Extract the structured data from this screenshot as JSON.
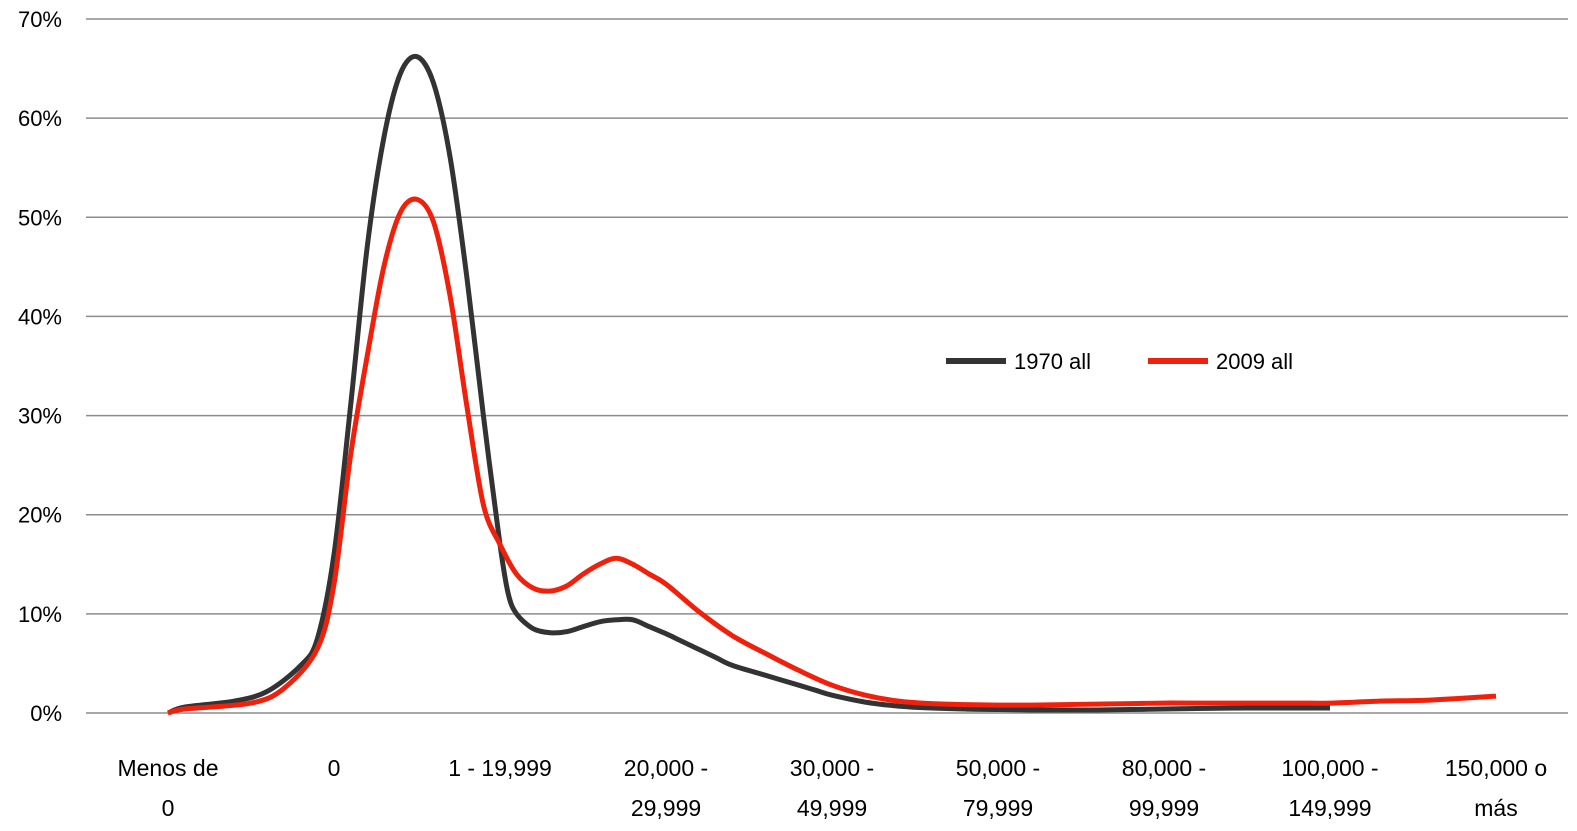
{
  "chart_data": {
    "type": "line",
    "title": "",
    "xlabel": "",
    "ylabel": "",
    "categories": [
      [
        "Menos de",
        "0"
      ],
      [
        "0"
      ],
      [
        "1 - 19,999"
      ],
      [
        "20,000 -",
        "29,999"
      ],
      [
        "30,000 -",
        "49,999"
      ],
      [
        "50,000 -",
        "79,999"
      ],
      [
        "80,000 -",
        "99,999"
      ],
      [
        "100,000 -",
        "149,999"
      ],
      [
        "150,000 o",
        "más"
      ]
    ],
    "x_range": [
      0,
      8
    ],
    "ylim": [
      0,
      70
    ],
    "y_ticks": [
      0,
      10,
      20,
      30,
      40,
      50,
      60,
      70
    ],
    "y_tick_labels": [
      "0%",
      "10%",
      "20%",
      "30%",
      "40%",
      "50%",
      "60%",
      "70%"
    ],
    "grid": true,
    "legend_position": "center-right",
    "series": [
      {
        "name": "1970 all",
        "color": "#333333",
        "x": [
          0,
          0.1,
          0.4,
          0.6,
          0.8,
          0.9,
          1.0,
          1.1,
          1.2,
          1.3,
          1.4,
          1.5,
          1.6,
          1.7,
          1.8,
          1.9,
          2.0,
          2.05,
          2.1,
          2.2,
          2.3,
          2.4,
          2.5,
          2.6,
          2.7,
          2.8,
          2.9,
          3.0,
          3.1,
          3.2,
          3.3,
          3.4,
          3.6,
          3.8,
          3.9,
          4.0,
          4.2,
          4.4,
          4.6,
          4.8,
          5.0,
          5.2,
          5.4,
          5.6,
          5.8,
          6.0,
          6.2,
          6.5,
          6.8,
          7.0
        ],
        "values": [
          0.0,
          0.6,
          1.2,
          2.2,
          4.8,
          7.5,
          16,
          31,
          47,
          58,
          64.5,
          66.2,
          63.5,
          56,
          44,
          30,
          17,
          12,
          10,
          8.5,
          8.1,
          8.2,
          8.7,
          9.2,
          9.4,
          9.4,
          8.7,
          8.0,
          7.2,
          6.4,
          5.6,
          4.8,
          3.8,
          2.8,
          2.3,
          1.8,
          1.1,
          0.7,
          0.5,
          0.4,
          0.35,
          0.3,
          0.3,
          0.3,
          0.35,
          0.4,
          0.45,
          0.5,
          0.5,
          0.5
        ]
      },
      {
        "name": "2009 all",
        "color": "#f0210c",
        "x": [
          0,
          0.1,
          0.5,
          0.7,
          0.9,
          1.0,
          1.1,
          1.2,
          1.3,
          1.4,
          1.5,
          1.6,
          1.7,
          1.8,
          1.9,
          2.0,
          2.1,
          2.2,
          2.3,
          2.4,
          2.5,
          2.6,
          2.7,
          2.8,
          2.9,
          3.0,
          3.2,
          3.4,
          3.6,
          3.8,
          4.0,
          4.2,
          4.4,
          4.6,
          4.8,
          5.0,
          5.2,
          5.4,
          5.6,
          5.8,
          6.0,
          6.2,
          6.5,
          6.8,
          7.0,
          7.3,
          7.6,
          8.0
        ],
        "values": [
          0.0,
          0.4,
          1.0,
          2.5,
          6.5,
          13,
          26,
          36,
          45,
          50.5,
          51.8,
          49.5,
          42,
          31,
          21,
          17,
          14,
          12.6,
          12.3,
          12.8,
          14,
          15,
          15.6,
          15,
          14,
          13,
          10.2,
          7.8,
          6.0,
          4.3,
          2.8,
          1.8,
          1.2,
          0.95,
          0.85,
          0.8,
          0.8,
          0.85,
          0.9,
          0.95,
          1.0,
          1.0,
          1.0,
          1.0,
          1.0,
          1.2,
          1.3,
          1.7
        ]
      }
    ]
  }
}
